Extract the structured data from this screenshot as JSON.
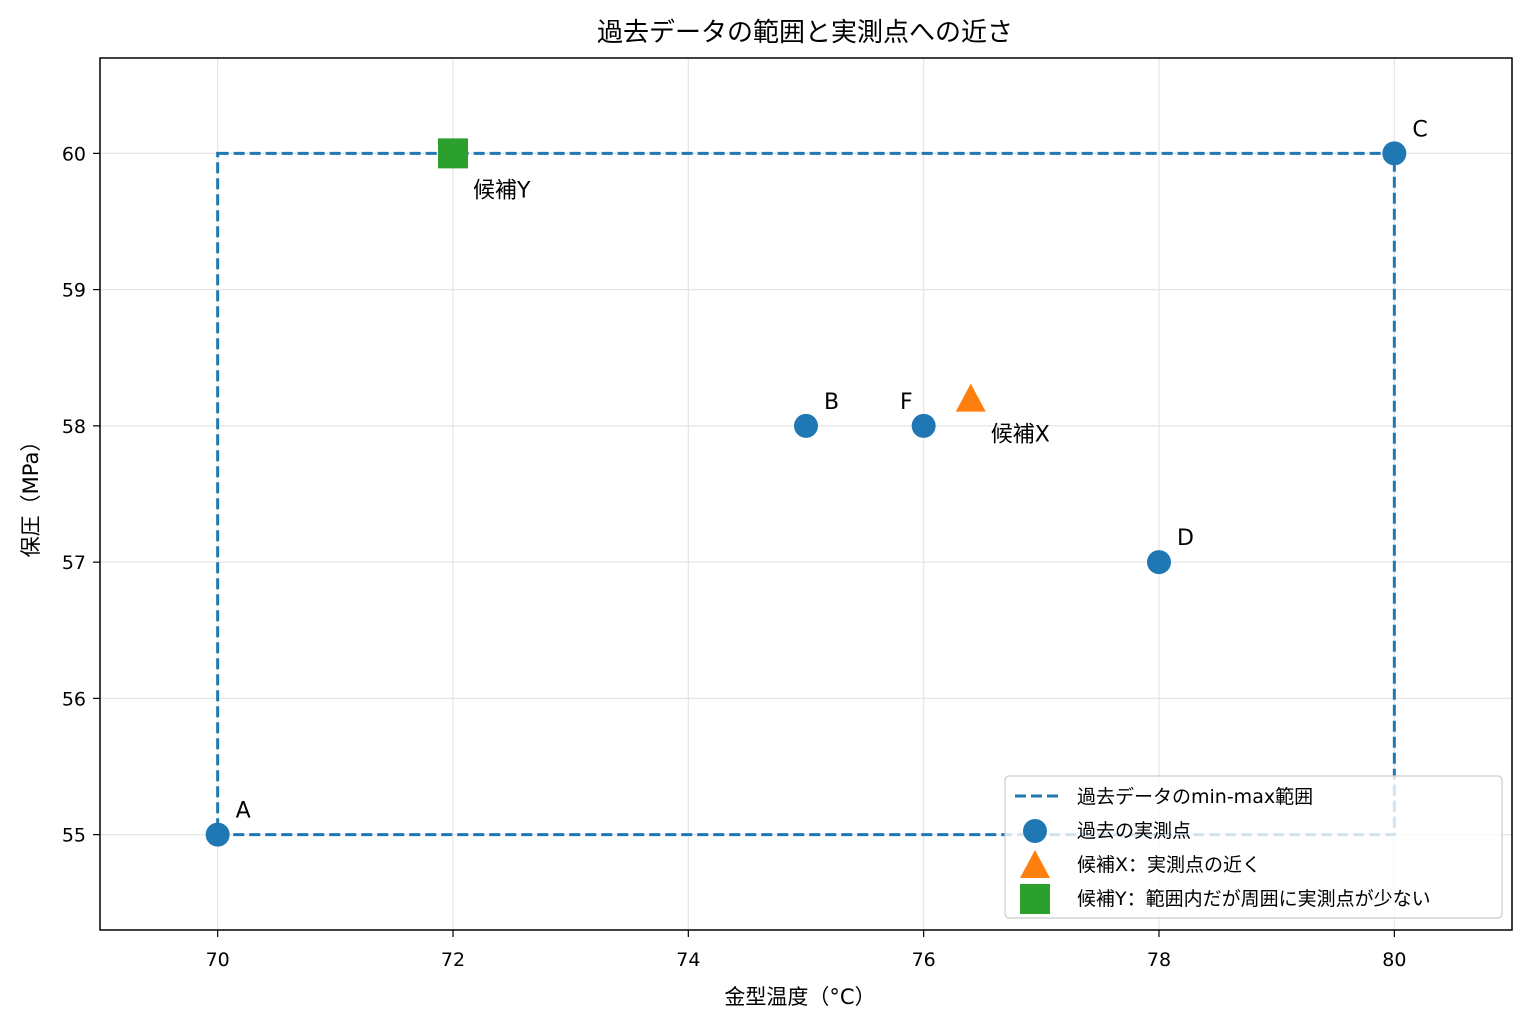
{
  "chart_data": {
    "type": "scatter",
    "title": "過去データの範囲と実測点への近さ",
    "xlabel": "金型温度（°C）",
    "ylabel": "保圧（MPa）",
    "xlim": [
      69,
      81
    ],
    "ylim": [
      54.3,
      60.7
    ],
    "xticks": [
      70,
      72,
      74,
      76,
      78,
      80
    ],
    "yticks": [
      55,
      56,
      57,
      58,
      59,
      60
    ],
    "grid": true,
    "legend_position": "lower-right",
    "range_box": {
      "name": "過去データのmin-max範囲",
      "x": [
        70,
        80
      ],
      "y": [
        55,
        60
      ],
      "color": "#1f77b4",
      "style": "dashed"
    },
    "series": [
      {
        "name": "過去の実測点",
        "marker": "circle",
        "color": "#1f77b4",
        "points": [
          {
            "label": "A",
            "x": 70,
            "y": 55
          },
          {
            "label": "B",
            "x": 75,
            "y": 58
          },
          {
            "label": "C",
            "x": 80,
            "y": 60
          },
          {
            "label": "D",
            "x": 78,
            "y": 57
          },
          {
            "label": "F",
            "x": 76,
            "y": 58
          }
        ]
      },
      {
        "name": "候補X：実測点の近く",
        "marker": "triangle",
        "color": "#ff7f0e",
        "points": [
          {
            "label": "候補X",
            "x": 76.4,
            "y": 58.2
          }
        ]
      },
      {
        "name": "候補Y：範囲内だが周囲に実測点が少ない",
        "marker": "square",
        "color": "#2ca02c",
        "points": [
          {
            "label": "候補Y",
            "x": 72,
            "y": 60
          }
        ]
      }
    ]
  }
}
